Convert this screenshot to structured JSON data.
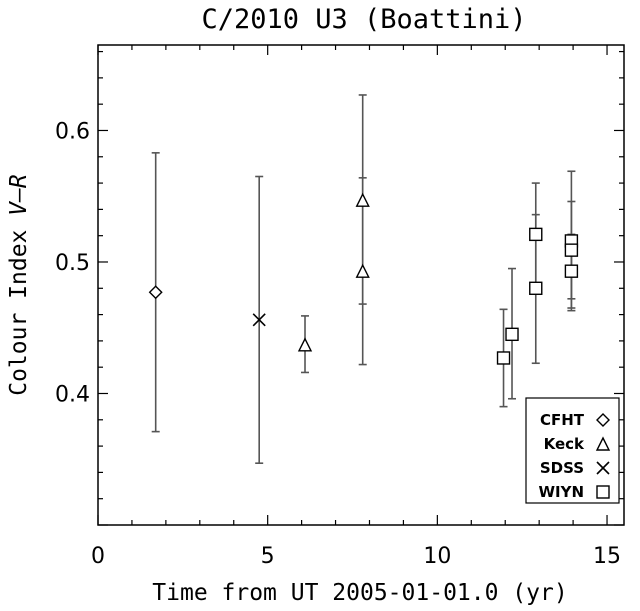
{
  "chart_data": {
    "type": "scatter",
    "title": "C/2010 U3 (Boattini)",
    "xlabel": "Time from UT 2005-01-01.0 (yr)",
    "ylabel_prefix": "Colour Index ",
    "ylabel_italic": "V–R",
    "xlim": [
      0,
      15.5
    ],
    "ylim": [
      0.3,
      0.665
    ],
    "xticks": [
      0,
      5,
      10,
      15
    ],
    "yticks": [
      0.4,
      0.5,
      0.6
    ],
    "xtick_labels": [
      "0",
      "5",
      "10",
      "15"
    ],
    "ytick_labels": [
      "0.4",
      "0.5",
      "0.6"
    ],
    "grid": false,
    "legend_position": "bottom-right",
    "error_bar_color": "#555555",
    "series": [
      {
        "name": "CFHT",
        "marker": "diamond",
        "points": [
          {
            "x": 1.7,
            "y": 0.477,
            "err_low": 0.371,
            "err_high": 0.583
          }
        ]
      },
      {
        "name": "Keck",
        "marker": "triangle",
        "points": [
          {
            "x": 6.1,
            "y": 0.437,
            "err_low": 0.416,
            "err_high": 0.459
          },
          {
            "x": 7.8,
            "y": 0.547,
            "err_low": 0.468,
            "err_high": 0.627
          },
          {
            "x": 7.8,
            "y": 0.493,
            "err_low": 0.422,
            "err_high": 0.564
          }
        ]
      },
      {
        "name": "SDSS",
        "marker": "cross",
        "points": [
          {
            "x": 4.75,
            "y": 0.456,
            "err_low": 0.347,
            "err_high": 0.565
          }
        ]
      },
      {
        "name": "WIYN",
        "marker": "square",
        "points": [
          {
            "x": 11.95,
            "y": 0.427,
            "err_low": 0.39,
            "err_high": 0.464
          },
          {
            "x": 12.2,
            "y": 0.445,
            "err_low": 0.396,
            "err_high": 0.495
          },
          {
            "x": 12.9,
            "y": 0.521,
            "err_low": 0.482,
            "err_high": 0.56
          },
          {
            "x": 12.9,
            "y": 0.48,
            "err_low": 0.423,
            "err_high": 0.536
          },
          {
            "x": 13.95,
            "y": 0.516,
            "err_low": 0.463,
            "err_high": 0.569
          },
          {
            "x": 13.95,
            "y": 0.509,
            "err_low": 0.472,
            "err_high": 0.546
          },
          {
            "x": 13.95,
            "y": 0.493,
            "err_low": 0.465,
            "err_high": 0.521
          }
        ]
      }
    ]
  }
}
